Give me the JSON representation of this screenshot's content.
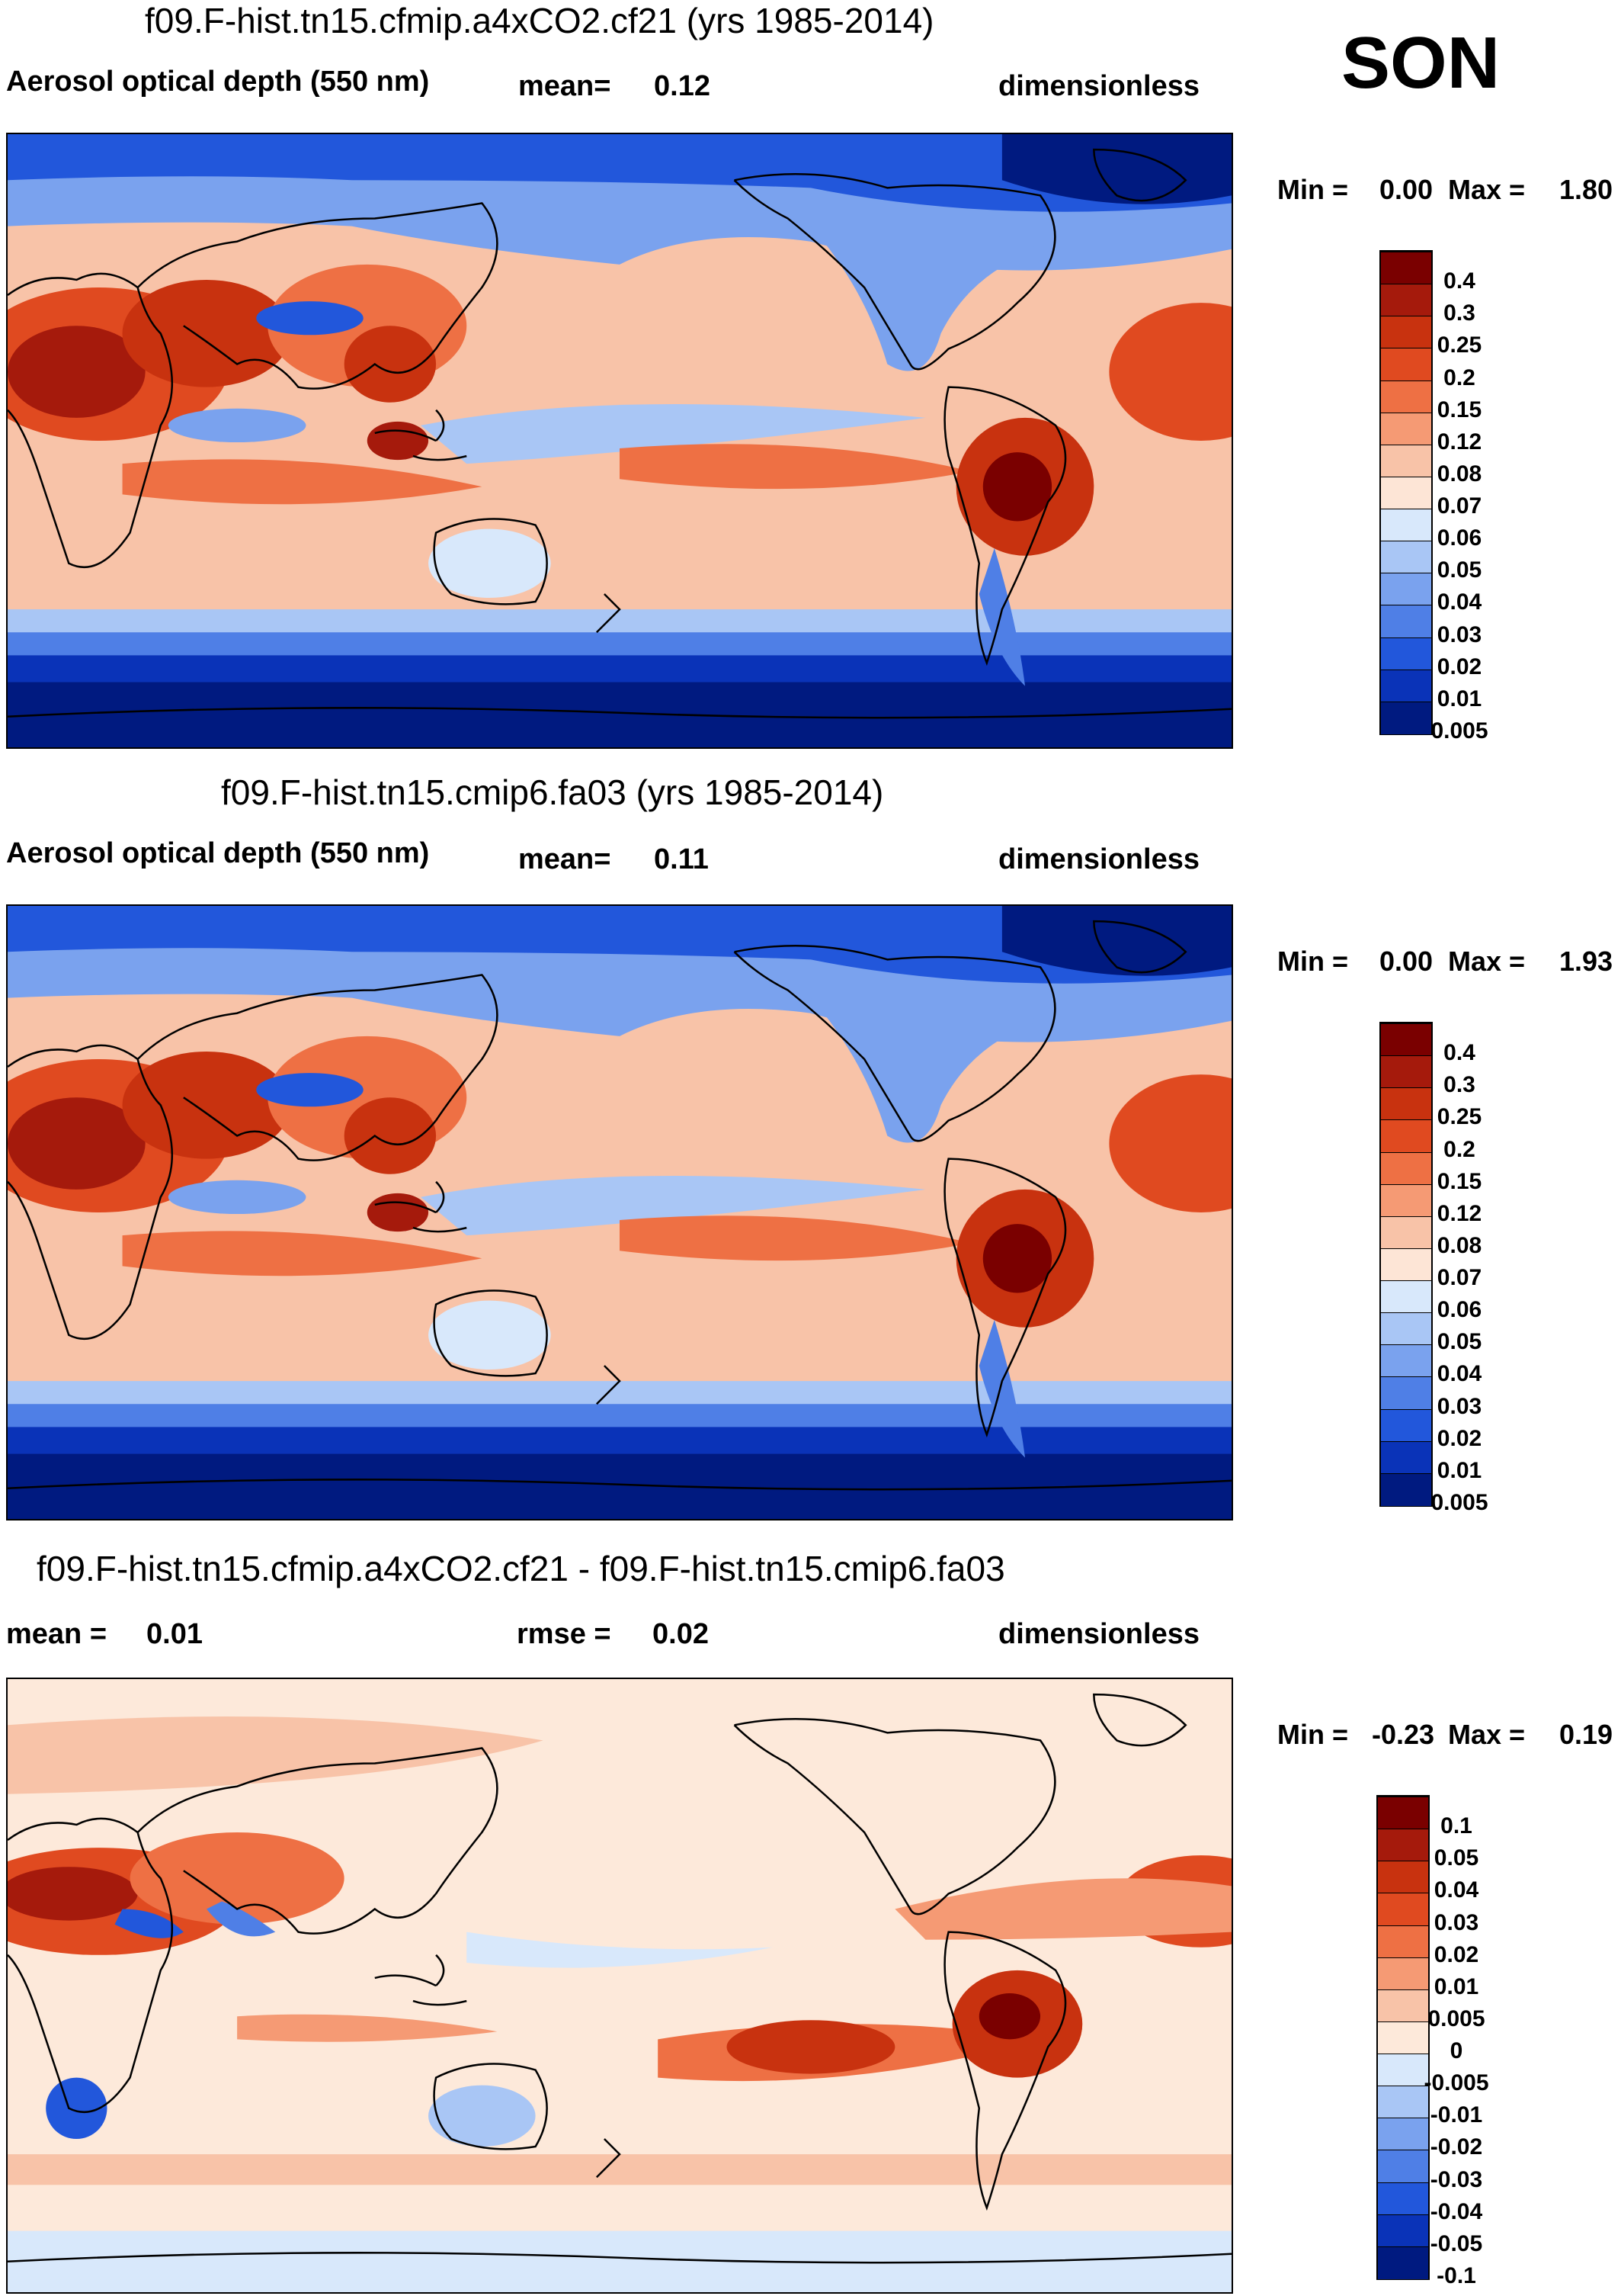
{
  "season": "SON",
  "panels": [
    {
      "id": "test",
      "case_title": "f09.F-hist.tn15.cfmip.a4xCO2.cf21 (yrs 1985-2014)",
      "left_header": "Aerosol optical depth (550 nm)",
      "mean_label": "mean=",
      "mean_value": "0.12",
      "units": "dimensionless",
      "min_label": "Min =",
      "min_value": "0.00",
      "max_label": "Max =",
      "max_value": "1.80",
      "colorbar_labels": [
        "0.4",
        "0.3",
        "0.25",
        "0.2",
        "0.15",
        "0.12",
        "0.08",
        "0.07",
        "0.06",
        "0.05",
        "0.04",
        "0.03",
        "0.02",
        "0.01",
        "0.005"
      ]
    },
    {
      "id": "control",
      "case_title": "f09.F-hist.tn15.cmip6.fa03 (yrs 1985-2014)",
      "left_header": "Aerosol optical depth (550 nm)",
      "mean_label": "mean=",
      "mean_value": "0.11",
      "units": "dimensionless",
      "min_label": "Min =",
      "min_value": "0.00",
      "max_label": "Max =",
      "max_value": "1.93",
      "colorbar_labels": [
        "0.4",
        "0.3",
        "0.25",
        "0.2",
        "0.15",
        "0.12",
        "0.08",
        "0.07",
        "0.06",
        "0.05",
        "0.04",
        "0.03",
        "0.02",
        "0.01",
        "0.005"
      ]
    },
    {
      "id": "difference",
      "case_title": "f09.F-hist.tn15.cfmip.a4xCO2.cf21 - f09.F-hist.tn15.cmip6.fa03",
      "mean_label": "mean =",
      "mean_value": "0.01",
      "rmse_label": "rmse =",
      "rmse_value": "0.02",
      "units": "dimensionless",
      "min_label": "Min =",
      "min_value": "-0.23",
      "max_label": "Max =",
      "max_value": "0.19",
      "colorbar_labels": [
        "0.1",
        "0.05",
        "0.04",
        "0.03",
        "0.02",
        "0.01",
        "0.005",
        "0",
        "-0.005",
        "-0.01",
        "-0.02",
        "-0.03",
        "-0.04",
        "-0.05",
        "-0.1"
      ]
    }
  ],
  "colors": {
    "field_scale": [
      "#7a0000",
      "#a51a0c",
      "#c8320f",
      "#e04a20",
      "#ee7044",
      "#f59a74",
      "#f8c3a8",
      "#fde5d6",
      "#d8e8fb",
      "#a9c6f5",
      "#7aa2ee",
      "#4f7fe6",
      "#2257db",
      "#0a33b8",
      "#001a80"
    ],
    "diff_scale": [
      "#7a0000",
      "#a51a0c",
      "#c8320f",
      "#e04a20",
      "#ee7044",
      "#f59a74",
      "#f8c3a8",
      "#fde9da",
      "#d8e8fb",
      "#a9c6f5",
      "#7aa2ee",
      "#4f7fe6",
      "#2257db",
      "#0a33b8",
      "#001a80"
    ],
    "coastline": "#000000"
  }
}
